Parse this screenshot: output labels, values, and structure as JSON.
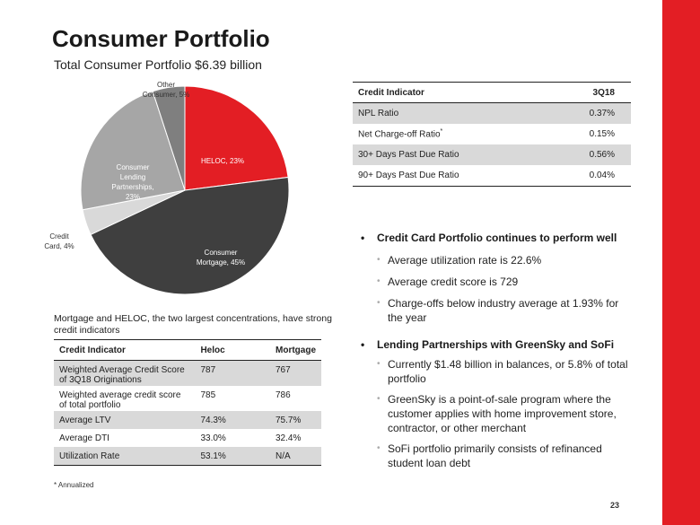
{
  "header": {
    "title": "Consumer Portfolio",
    "subtitle": "Total Consumer Portfolio $6.39 billion"
  },
  "chart_data": {
    "type": "pie",
    "title": "Total Consumer Portfolio $6.39 billion",
    "slices": [
      {
        "name": "HELOC",
        "label": [
          "HELOC, 23%"
        ],
        "value": 23,
        "color": "#e31e24",
        "text_color": "#ffffff"
      },
      {
        "name": "Consumer Mortgage",
        "label": [
          "Consumer",
          "Mortgage, 45%"
        ],
        "value": 45,
        "color": "#3f3f3f",
        "text_color": "#ffffff"
      },
      {
        "name": "Credit Card",
        "label": [
          "Credit",
          "Card, 4%"
        ],
        "value": 4,
        "color": "#d9d9d9",
        "text_color": "#333333"
      },
      {
        "name": "Consumer Lending Partnerships",
        "label": [
          "Consumer",
          "Lending",
          "Partnerships,",
          "23%"
        ],
        "value": 23,
        "color": "#a6a6a6",
        "text_color": "#ffffff"
      },
      {
        "name": "Other Consumer",
        "label": [
          "Other",
          "Consumer, 5%"
        ],
        "value": 5,
        "color": "#7f7f7f",
        "text_color": "#333333"
      }
    ]
  },
  "caption": "Mortgage and HELOC, the two largest concentrations, have strong credit indicators",
  "left_table": {
    "headers": [
      "Credit Indicator",
      "Heloc",
      "Mortgage"
    ],
    "rows": [
      [
        "Weighted Average Credit Score of 3Q18 Originations",
        "787",
        "767"
      ],
      [
        "Weighted average credit score of total portfolio",
        "785",
        "786"
      ],
      [
        "Average LTV",
        "74.3%",
        "75.7%"
      ],
      [
        "Average DTI",
        "33.0%",
        "32.4%"
      ],
      [
        "Utilization Rate",
        "53.1%",
        "N/A"
      ]
    ]
  },
  "footnote": "* Annualized",
  "right_table": {
    "headers": [
      "Credit Indicator",
      "3Q18"
    ],
    "rows": [
      {
        "label": "NPL Ratio",
        "sup": "",
        "value": "0.37%"
      },
      {
        "label": "Net Charge-off Ratio",
        "sup": "*",
        "value": "0.15%"
      },
      {
        "label": "30+ Days Past Due Ratio",
        "sup": "",
        "value": "0.56%"
      },
      {
        "label": "90+ Days Past Due Ratio",
        "sup": "",
        "value": "0.04%"
      }
    ]
  },
  "bullets": [
    {
      "heading": "Credit Card Portfolio continues to perform well",
      "items": [
        "Average utilization rate is 22.6%",
        "Average credit score is 729",
        "Charge-offs below industry average at 1.93% for the year"
      ]
    },
    {
      "heading": "Lending Partnerships with GreenSky and SoFi",
      "items": [
        "Currently $1.48 billion in balances, or 5.8% of total portfolio",
        "GreenSky is a point-of-sale program where the customer applies with home improvement store, contractor, or other merchant",
        "SoFi portfolio primarily consists of refinanced student loan debt"
      ]
    }
  ],
  "page_number": "23",
  "colors": {
    "accent": "#e31e24",
    "shade": "#d9d9d9"
  }
}
